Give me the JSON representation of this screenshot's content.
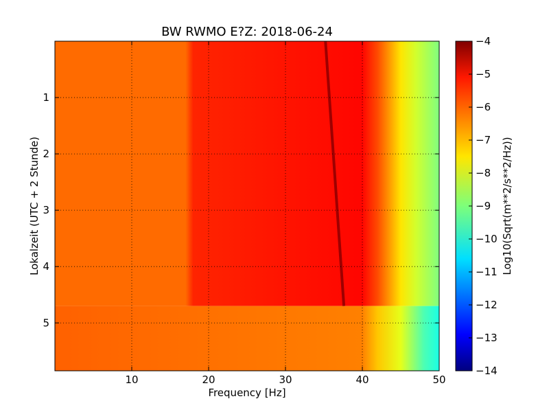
{
  "chart_data": {
    "type": "heatmap",
    "title": "BW RWMO E?Z: 2018-06-24",
    "xlabel": "Frequency [Hz]",
    "ylabel": "Lokalzeit (UTC + 2 Stunde)",
    "xlim": [
      0,
      50
    ],
    "ylim": [
      5.85,
      0
    ],
    "x_ticks": [
      10,
      20,
      30,
      40,
      50
    ],
    "y_ticks": [
      1,
      2,
      3,
      4,
      5
    ],
    "grid": true,
    "grid_style": "dotted",
    "colormap": "jet",
    "colorbar": {
      "label": "Log10(Sqrt(m**2/s**2/Hz))",
      "range": [
        -14,
        -4
      ],
      "ticks": [
        -4,
        -5,
        -6,
        -7,
        -8,
        -9,
        -10,
        -11,
        -12,
        -13,
        -14
      ]
    },
    "regions": [
      {
        "time_range": [
          0,
          4.7
        ],
        "description": "high-level band",
        "freq_values": [
          [
            0,
            -6.3
          ],
          [
            17,
            -6.3
          ],
          [
            18,
            -5.6
          ],
          [
            33,
            -5.4
          ],
          [
            40,
            -5.3
          ],
          [
            42,
            -6.0
          ],
          [
            45,
            -7.5
          ],
          [
            47,
            -8.2
          ],
          [
            50,
            -9.0
          ]
        ]
      },
      {
        "time_range": [
          4.7,
          5.85
        ],
        "description": "lower-level band",
        "freq_values": [
          [
            0,
            -6.2
          ],
          [
            40,
            -6.5
          ],
          [
            42,
            -7.2
          ],
          [
            45,
            -8.0
          ],
          [
            48,
            -9.5
          ],
          [
            50,
            -10.0
          ]
        ]
      }
    ],
    "narrow_line": {
      "description": "drifting narrowband signal",
      "points": [
        [
          35.2,
          0
        ],
        [
          37.6,
          4.7
        ]
      ],
      "value": -4.3
    }
  }
}
